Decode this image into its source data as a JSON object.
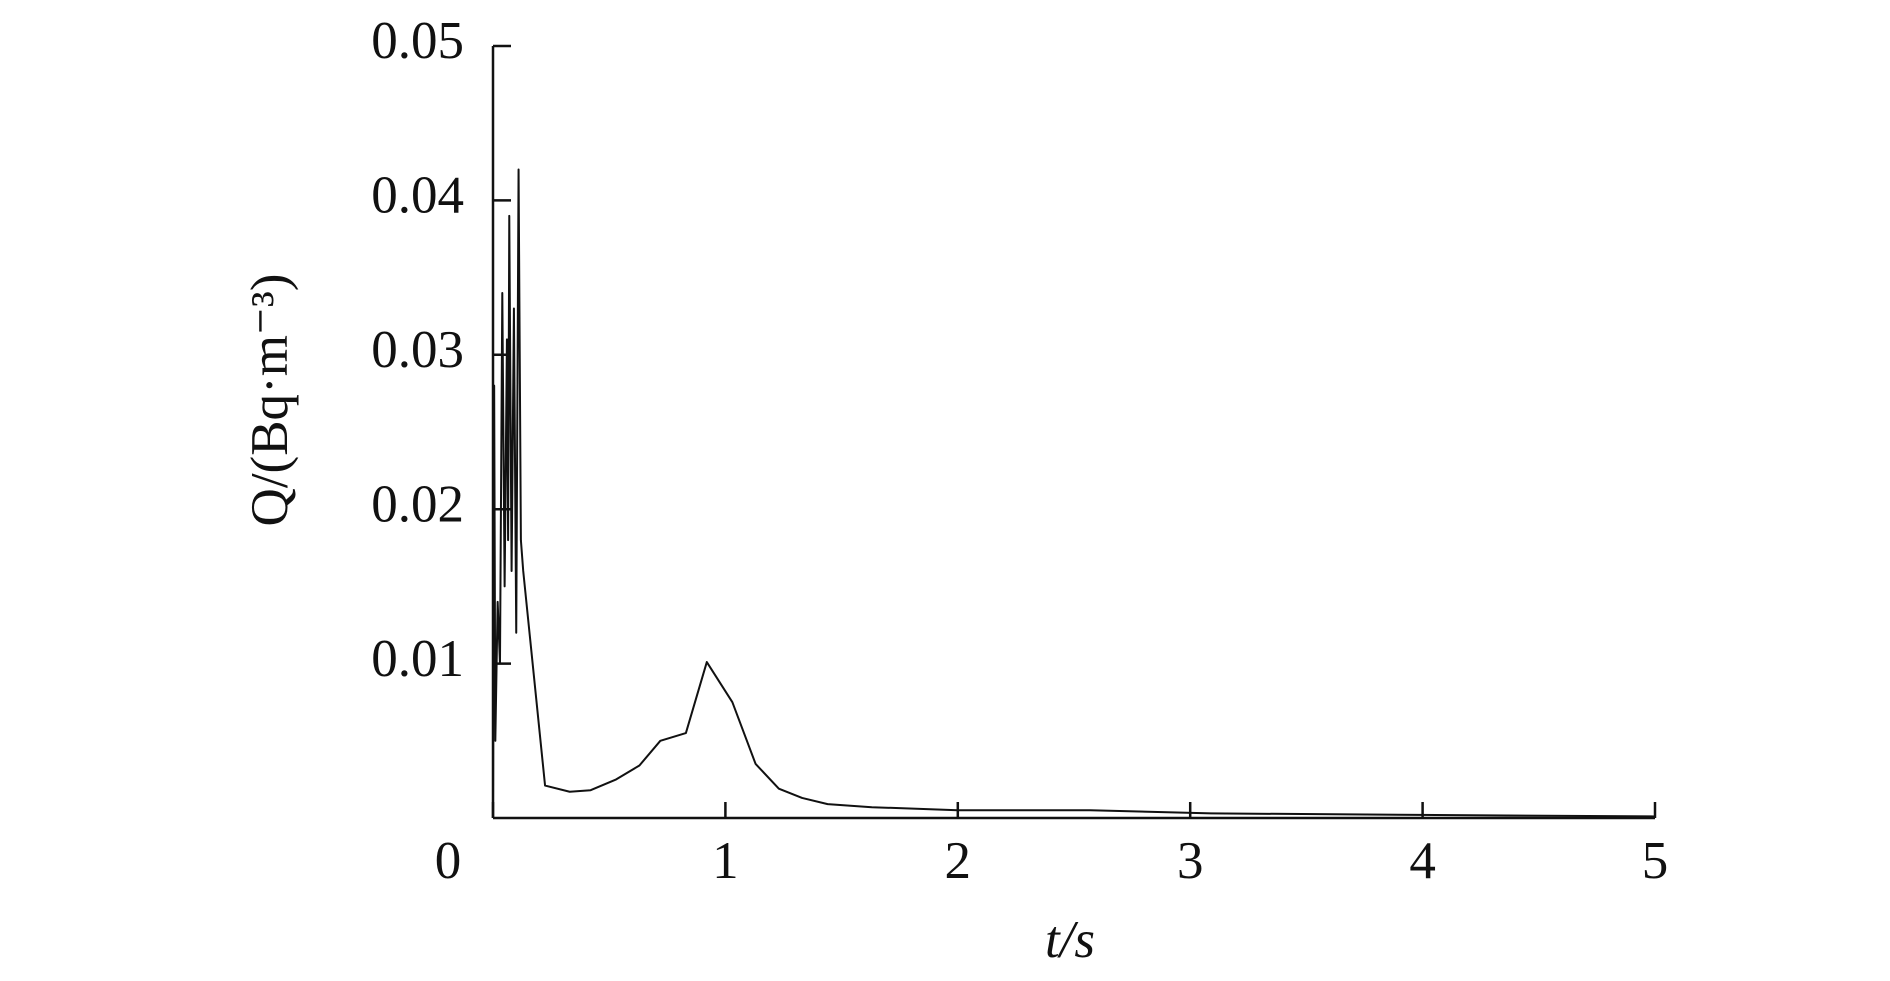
{
  "chart_data": {
    "type": "line",
    "xlabel": "t/s",
    "ylabel": "Q/(Bq·m⁻³)",
    "xlim": [
      0,
      5
    ],
    "ylim": [
      0,
      0.05
    ],
    "xticks": [
      0,
      1,
      2,
      3,
      4,
      5
    ],
    "yticks": [
      0.01,
      0.02,
      0.03,
      0.04,
      0.05
    ],
    "color": "#111111",
    "x": [
      0,
      0.005,
      0.01,
      0.02,
      0.03,
      0.04,
      0.05,
      0.06,
      0.065,
      0.07,
      0.08,
      0.09,
      0.1,
      0.11,
      0.12,
      0.13,
      0.224,
      0.33,
      0.42,
      0.53,
      0.63,
      0.72,
      0.83,
      0.92,
      1.03,
      1.13,
      1.23,
      1.33,
      1.44,
      1.63,
      2.0,
      2.57,
      3.09,
      3.98,
      5
    ],
    "values": [
      0.0005,
      0.028,
      0.005,
      0.014,
      0.01,
      0.034,
      0.015,
      0.031,
      0.018,
      0.039,
      0.016,
      0.033,
      0.012,
      0.042,
      0.018,
      0.016,
      0.0021,
      0.0017,
      0.0018,
      0.0025,
      0.0034,
      0.005,
      0.0055,
      0.0101,
      0.0075,
      0.0035,
      0.0019,
      0.0013,
      0.0009,
      0.0007,
      0.0005,
      0.0005,
      0.0003,
      0.0002,
      0.0001
    ]
  }
}
